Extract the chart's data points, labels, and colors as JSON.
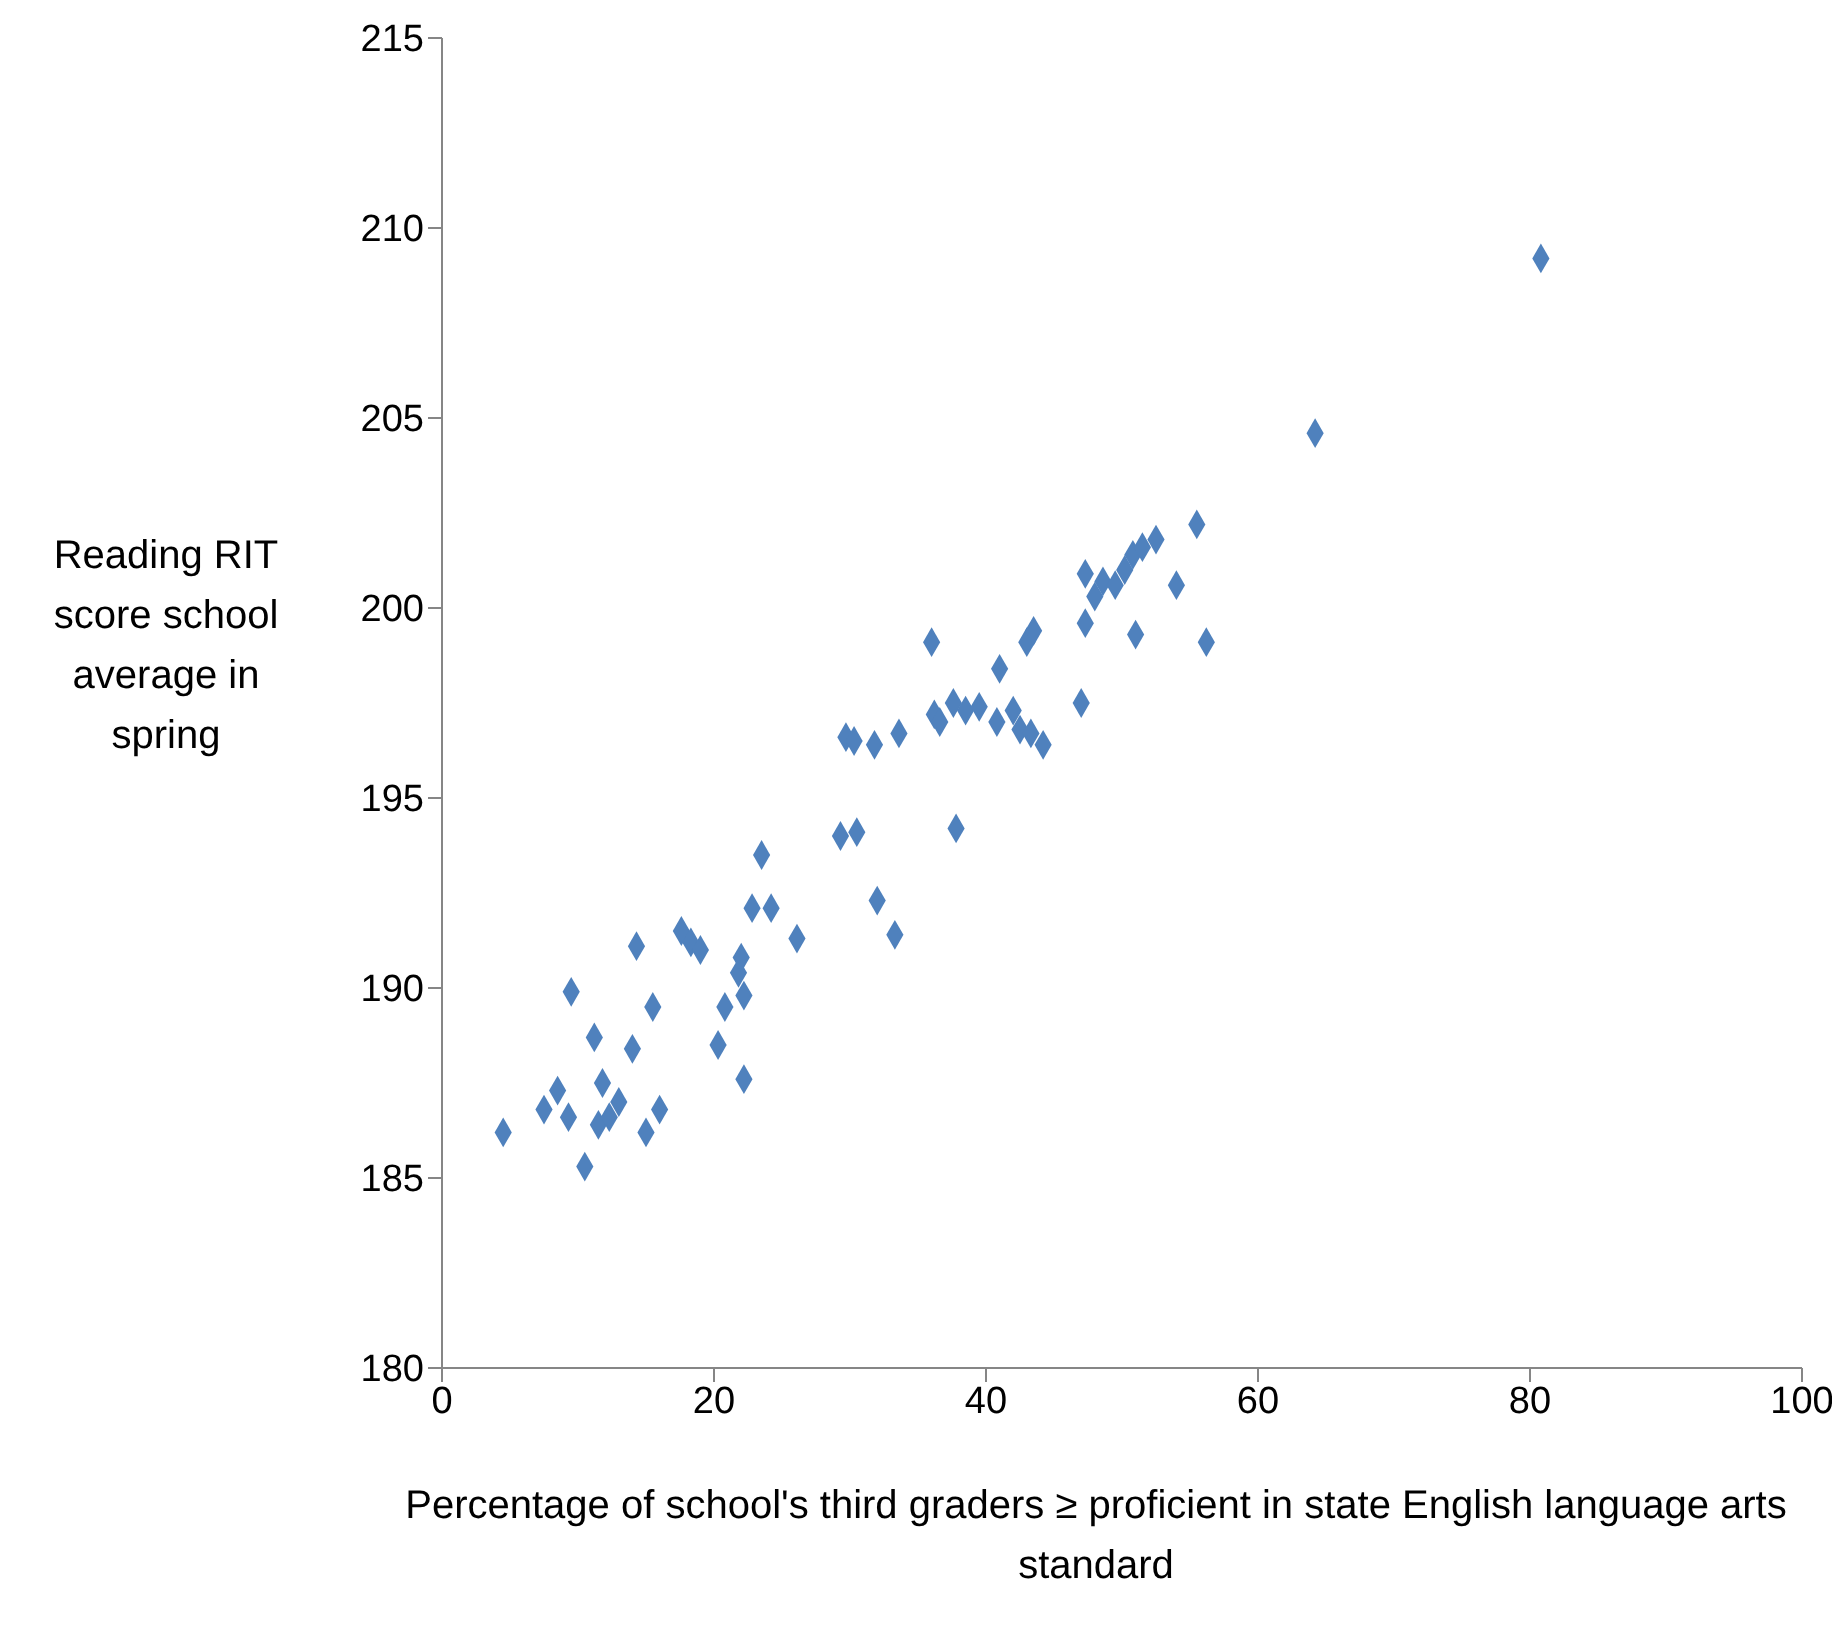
{
  "chart_data": {
    "type": "scatter",
    "xlabel": "Percentage of school's third graders ≥ proficient in state English language arts standard",
    "ylabel": "Reading RIT score school average in spring",
    "x": [
      4.5,
      7.5,
      8.5,
      9.3,
      9.5,
      10.5,
      11.2,
      11.5,
      11.8,
      12.3,
      13,
      14,
      14.3,
      15,
      15.5,
      16,
      17.6,
      18.3,
      19,
      20.3,
      20.8,
      21.8,
      22,
      22.2,
      22.2,
      22.8,
      23.5,
      24.2,
      26.1,
      29.3,
      29.7,
      30.3,
      30.5,
      31.8,
      32,
      33.3,
      33.6,
      36,
      36.2,
      36.6,
      37.6,
      37.8,
      38.5,
      39.5,
      40.8,
      41,
      42,
      42.5,
      43,
      43.5,
      43.3,
      44.2,
      47,
      47.3,
      47.3,
      48,
      48.6,
      49.5,
      50.2,
      50.8,
      51,
      51.5,
      52.5,
      54,
      55.5,
      56.2,
      64.2,
      80.8
    ],
    "values": [
      186.2,
      186.8,
      187.3,
      186.6,
      189.9,
      185.3,
      188.7,
      186.4,
      187.5,
      186.6,
      187,
      188.4,
      191.1,
      186.2,
      189.5,
      186.8,
      191.5,
      191.2,
      191,
      188.5,
      189.5,
      190.4,
      190.8,
      189.8,
      187.6,
      192.1,
      193.5,
      192.1,
      191.3,
      194,
      196.6,
      196.5,
      194.1,
      196.4,
      192.3,
      191.4,
      196.7,
      199.1,
      197.2,
      197,
      197.5,
      194.2,
      197.3,
      197.4,
      197,
      198.4,
      197.3,
      196.8,
      199.1,
      199.4,
      196.7,
      196.4,
      197.5,
      199.6,
      200.9,
      200.3,
      200.7,
      200.6,
      201,
      201.4,
      199.3,
      201.6,
      201.8,
      200.6,
      202.2,
      199.1,
      204.6,
      209.2
    ],
    "color": "#4f81bd",
    "marker": "diamond",
    "xlim": [
      0,
      100
    ],
    "xticks": [
      0,
      20,
      40,
      60,
      80,
      100
    ],
    "ylim": [
      180,
      215
    ],
    "yticks": [
      180,
      185,
      190,
      195,
      200,
      205,
      210,
      215
    ],
    "grid": false,
    "legend": false
  }
}
